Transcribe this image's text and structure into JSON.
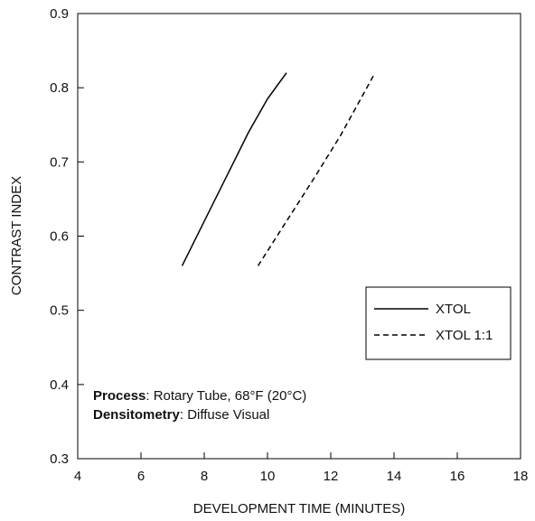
{
  "chart_data": {
    "type": "line",
    "xlabel": "DEVELOPMENT TIME (MINUTES)",
    "ylabel": "CONTRAST INDEX",
    "xlim": [
      4,
      18
    ],
    "ylim": [
      0.3,
      0.9
    ],
    "x_ticks": [
      4,
      6,
      8,
      10,
      12,
      14,
      16,
      18
    ],
    "y_ticks": [
      0.3,
      0.4,
      0.5,
      0.6,
      0.7,
      0.8,
      0.9
    ],
    "x_tick_labels": [
      "4",
      "6",
      "8",
      "10",
      "12",
      "14",
      "16",
      "18"
    ],
    "y_tick_labels": [
      "0.3",
      "0.4",
      "0.5",
      "0.6",
      "0.7",
      "0.8",
      "0.9"
    ],
    "grid": false,
    "legend_position": "right",
    "series": [
      {
        "name": "XTOL",
        "style": "solid",
        "points": [
          {
            "x": 7.3,
            "y": 0.56
          },
          {
            "x": 8.0,
            "y": 0.62
          },
          {
            "x": 8.7,
            "y": 0.68
          },
          {
            "x": 9.4,
            "y": 0.74
          },
          {
            "x": 10.0,
            "y": 0.785
          },
          {
            "x": 10.6,
            "y": 0.82
          }
        ]
      },
      {
        "name": "XTOL 1:1",
        "style": "dashed",
        "points": [
          {
            "x": 9.7,
            "y": 0.56
          },
          {
            "x": 10.6,
            "y": 0.62
          },
          {
            "x": 11.5,
            "y": 0.68
          },
          {
            "x": 12.3,
            "y": 0.735
          },
          {
            "x": 13.4,
            "y": 0.82
          }
        ]
      }
    ],
    "annotations": [
      {
        "bold": "Process",
        "text": ": Rotary Tube, 68°F (20°C)"
      },
      {
        "bold": "Densitometry",
        "text": ": Diffuse Visual"
      }
    ]
  },
  "colors": {
    "line": "#000000",
    "axis": "#000000",
    "background": "#ffffff"
  }
}
